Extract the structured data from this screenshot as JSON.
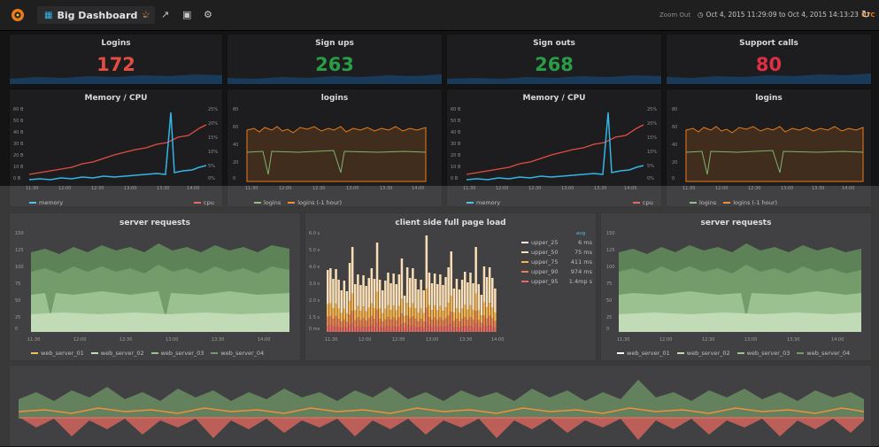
{
  "dashboard": {
    "title": "Big Dashboard",
    "zoom_out": "Zoom Out",
    "time_range": "Oct 4, 2015 11:29:09 to Oct 4, 2015 14:13:23",
    "timezone": "UTC"
  },
  "stats": [
    {
      "title": "Logins",
      "value": "172",
      "color": "#e24d42"
    },
    {
      "title": "Sign ups",
      "value": "263",
      "color": "#299c46"
    },
    {
      "title": "Sign outs",
      "value": "268",
      "color": "#299c46"
    },
    {
      "title": "Support calls",
      "value": "80",
      "color": "#e02f44"
    }
  ],
  "graphs": {
    "memcpu_title": "Memory / CPU",
    "memcpu_left_ticks": [
      "60 B",
      "50 B",
      "40 B",
      "30 B",
      "20 B",
      "10 B",
      "0 B"
    ],
    "memcpu_right_ticks": [
      "25%",
      "20%",
      "15%",
      "10%",
      "5%",
      "0%"
    ],
    "logins_title": "logins",
    "logins_ticks": [
      "80",
      "60",
      "40",
      "20",
      "0"
    ],
    "time_ticks": [
      "11:30",
      "12:00",
      "12:30",
      "13:00",
      "13:30",
      "14:00"
    ],
    "memory_legend": "memory",
    "cpu_legend": "cpu",
    "logins_legend": "logins",
    "logins_shift_legend": "logins (-1 hour)"
  },
  "server_requests": {
    "title": "server requests",
    "y_ticks": [
      "150",
      "125",
      "100",
      "75",
      "50",
      "25",
      "0"
    ],
    "legend": [
      "web_server_01",
      "web_server_02",
      "web_server_03",
      "web_server_04"
    ]
  },
  "client_load": {
    "title": "client side full page load",
    "y_ticks": [
      "6.0 s",
      "5.0 s",
      "4.0 s",
      "3.0 s",
      "2.0 s",
      "1.5 s",
      "0 ms"
    ],
    "avg_header": "avg",
    "legend": [
      {
        "name": "upper_25",
        "value": "6 ms",
        "color": "#fce2de"
      },
      {
        "name": "upper_50",
        "value": "75 ms",
        "color": "#f9d9a8"
      },
      {
        "name": "upper_75",
        "value": "411 ms",
        "color": "#f4a52c"
      },
      {
        "name": "upper_90",
        "value": "974 ms",
        "color": "#e5692c"
      },
      {
        "name": "upper_95",
        "value": "1.4mp s",
        "color": "#e24d42"
      }
    ]
  },
  "colors": {
    "memory": "#33b5e5",
    "cpu": "#e24d42",
    "login": "#eb7b18",
    "login_shift": "#7eb26d",
    "green": "#7eb26d"
  }
}
